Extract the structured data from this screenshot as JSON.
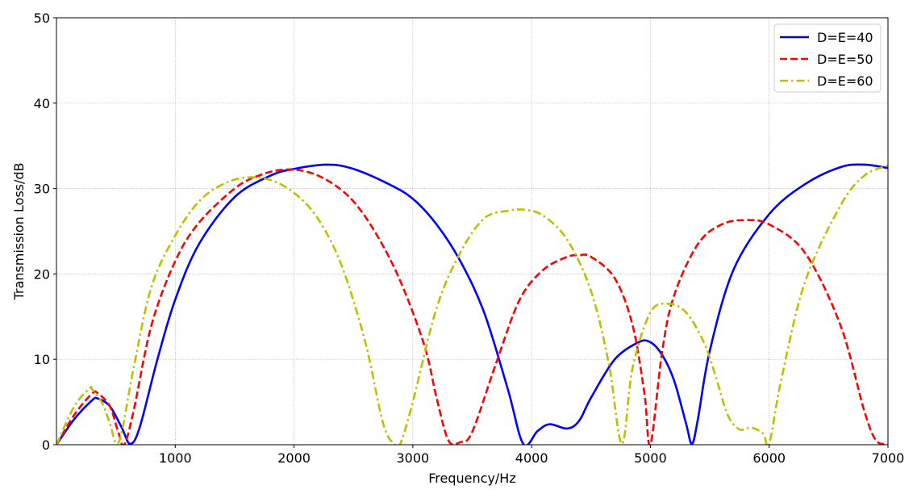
{
  "chart_data": {
    "type": "line",
    "title": "",
    "xlabel": "Frequency/Hz",
    "ylabel": "Transmission Loss/dB",
    "xlim": [
      0,
      7000
    ],
    "ylim": [
      0,
      50
    ],
    "x_ticks": [
      1000,
      2000,
      3000,
      4000,
      5000,
      6000,
      7000
    ],
    "x_tick_labels": [
      "1000",
      "2000",
      "3000",
      "4000",
      "5000",
      "6000",
      "7000"
    ],
    "y_ticks": [
      0,
      10,
      20,
      30,
      40,
      50
    ],
    "y_tick_labels": [
      "0",
      "10",
      "20",
      "30",
      "40",
      "50"
    ],
    "grid": true,
    "legend_position": "top-right",
    "series": [
      {
        "name": "D=E=40",
        "color": "#0000ff",
        "dash": "solid",
        "x": [
          0,
          150,
          300,
          350,
          450,
          550,
          620,
          700,
          850,
          1000,
          1200,
          1500,
          1800,
          2000,
          2280,
          2500,
          2800,
          3000,
          3200,
          3400,
          3600,
          3800,
          3930,
          4050,
          4150,
          4300,
          4400,
          4500,
          4700,
          4900,
          5000,
          5100,
          5200,
          5300,
          5350,
          5400,
          5500,
          5700,
          6000,
          6300,
          6600,
          6800,
          7000
        ],
        "y": [
          0,
          3,
          5.2,
          5.4,
          4.5,
          2,
          0.1,
          2,
          10,
          17,
          23.5,
          29,
          31.5,
          32.3,
          32.8,
          32.3,
          30.5,
          28.8,
          25.8,
          21.5,
          15.5,
          6.5,
          0.1,
          1.6,
          2.4,
          1.9,
          2.8,
          5.5,
          10,
          12,
          12,
          10.5,
          7.5,
          2.5,
          0.1,
          3,
          11,
          20.5,
          27,
          30.5,
          32.5,
          32.8,
          32.4
        ]
      },
      {
        "name": "D=E=50",
        "color": "#ff0000",
        "dash": "dashed",
        "x": [
          0,
          150,
          300,
          350,
          450,
          520,
          570,
          650,
          800,
          1000,
          1200,
          1500,
          1700,
          1900,
          2100,
          2300,
          2500,
          2700,
          2900,
          3100,
          3200,
          3300,
          3400,
          3500,
          3700,
          3900,
          4100,
          4300,
          4400,
          4500,
          4700,
          4850,
          4950,
          5000,
          5100,
          5200,
          5400,
          5600,
          5800,
          6000,
          6300,
          6600,
          6800,
          6900,
          7000
        ],
        "y": [
          0,
          3.5,
          6,
          6,
          4.5,
          1.5,
          0,
          4,
          14,
          21.5,
          26,
          30,
          31.5,
          32.2,
          32,
          30.8,
          28.5,
          24.5,
          19,
          11.5,
          5.5,
          0.5,
          0.3,
          1.5,
          9.5,
          17,
          20.5,
          22,
          22.2,
          22,
          19.5,
          14,
          6,
          0,
          11,
          17.5,
          23.5,
          25.8,
          26.3,
          25.8,
          22.5,
          14,
          4,
          0.5,
          0.1
        ]
      },
      {
        "name": "D=E=60",
        "color": "#bfbf00",
        "dash": "dashdot",
        "x": [
          0,
          150,
          280,
          300,
          380,
          450,
          500,
          550,
          650,
          800,
          1000,
          1200,
          1400,
          1600,
          1800,
          2000,
          2200,
          2400,
          2600,
          2750,
          2850,
          2900,
          3000,
          3200,
          3400,
          3600,
          3800,
          3950,
          4100,
          4300,
          4500,
          4650,
          4760,
          4850,
          5000,
          5150,
          5300,
          5450,
          5550,
          5650,
          5750,
          5850,
          5950,
          6000,
          6100,
          6300,
          6600,
          6800,
          7000
        ],
        "y": [
          0,
          4.5,
          6.6,
          6.5,
          5,
          2.5,
          0.2,
          1.5,
          9,
          18.5,
          24.5,
          28.5,
          30.5,
          31.3,
          31,
          29.5,
          26.5,
          21,
          12,
          2.5,
          0,
          0.3,
          5,
          16,
          22.5,
          26.5,
          27.4,
          27.5,
          26.8,
          24,
          18,
          9.5,
          0.1,
          9,
          15.5,
          16.5,
          15.5,
          12,
          8,
          3.5,
          1.8,
          2,
          1.3,
          0.1,
          7.5,
          19,
          28,
          31.5,
          32.7
        ]
      }
    ]
  }
}
